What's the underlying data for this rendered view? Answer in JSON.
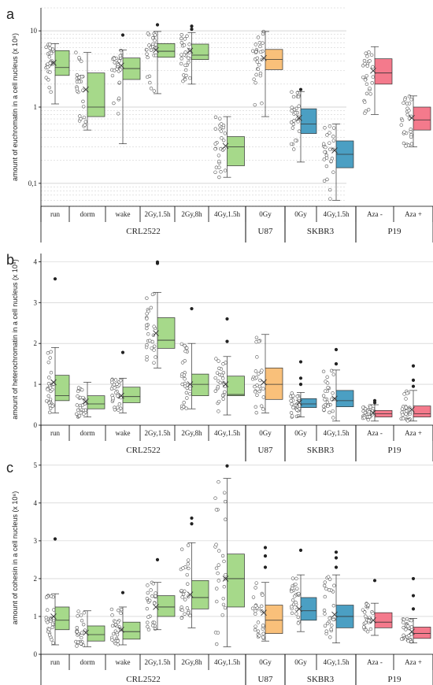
{
  "colors": {
    "CRL2522": "#a6d98a",
    "U87": "#f9c07a",
    "SKBR3": "#4b9fc3",
    "P19": "#f47a8c",
    "grid": "#c8c8c8",
    "axis": "#000000"
  },
  "chart_data": [
    {
      "type": "box",
      "panel": "a",
      "ylabel": "amount of euchromatin in a cell nucleus (x 10⁸)",
      "yscale": "log",
      "ylim": [
        0.05,
        20
      ],
      "yticks": [
        0.1,
        1,
        10
      ],
      "yticklabels": [
        "0,1",
        "1",
        "10"
      ],
      "grid": true,
      "categories": [
        "run",
        "dorm",
        "wake",
        "2Gy,1.5h",
        "2Gy,8h",
        "4Gy,1.5h",
        "0Gy",
        "0Gy",
        "4Gy,1.5h",
        "Aza -",
        "Aza +"
      ],
      "groups": [
        {
          "name": "CRL2522",
          "span": [
            0,
            5
          ]
        },
        {
          "name": "U87",
          "span": [
            6,
            6
          ]
        },
        {
          "name": "SKBR3",
          "span": [
            7,
            8
          ]
        },
        {
          "name": "P19",
          "span": [
            9,
            10
          ]
        }
      ],
      "boxes": [
        {
          "min": 1.1,
          "q1": 2.6,
          "median": 3.3,
          "q3": 5.5,
          "max": 6.8,
          "mean": 3.8,
          "outliers": []
        },
        {
          "min": 0.5,
          "q1": 0.75,
          "median": 1.0,
          "q3": 2.8,
          "max": 5.2,
          "mean": 1.7,
          "outliers": []
        },
        {
          "min": 0.33,
          "q1": 2.3,
          "median": 3.2,
          "q3": 4.4,
          "max": 5.6,
          "mean": 3.5,
          "outliers": [
            8.8
          ]
        },
        {
          "min": 1.5,
          "q1": 4.5,
          "median": 5.4,
          "q3": 6.8,
          "max": 9.8,
          "mean": 5.6,
          "outliers": [
            12
          ]
        },
        {
          "min": 2.0,
          "q1": 4.2,
          "median": 4.8,
          "q3": 6.7,
          "max": 9.5,
          "mean": 5.5,
          "outliers": [
            10.5,
            11.5
          ]
        },
        {
          "min": 0.12,
          "q1": 0.17,
          "median": 0.3,
          "q3": 0.41,
          "max": 0.75,
          "mean": 0.31,
          "outliers": []
        },
        {
          "min": 0.75,
          "q1": 3.1,
          "median": 4.2,
          "q3": 5.7,
          "max": 9.8,
          "mean": 4.4,
          "outliers": []
        },
        {
          "min": 0.19,
          "q1": 0.45,
          "median": 0.6,
          "q3": 0.95,
          "max": 1.6,
          "mean": 0.72,
          "outliers": [
            1.7
          ]
        },
        {
          "min": 0.06,
          "q1": 0.16,
          "median": 0.24,
          "q3": 0.36,
          "max": 0.6,
          "mean": 0.27,
          "outliers": []
        },
        {
          "min": 0.8,
          "q1": 2.0,
          "median": 2.8,
          "q3": 4.3,
          "max": 6.2,
          "mean": 3.0,
          "outliers": []
        },
        {
          "min": 0.3,
          "q1": 0.5,
          "median": 0.68,
          "q3": 1.0,
          "max": 1.4,
          "mean": 0.72,
          "outliers": []
        }
      ]
    },
    {
      "type": "box",
      "panel": "b",
      "ylabel": "amount of heterochromatin in a cell nucleus (x 10⁸)",
      "yscale": "linear",
      "ylim": [
        0,
        4.2
      ],
      "yticks": [
        0,
        1,
        2,
        3,
        4
      ],
      "yticklabels": [
        "0",
        "1",
        "2",
        "3",
        "4"
      ],
      "grid": true,
      "categories": [
        "run",
        "dorm",
        "wake",
        "2Gy,1.5h",
        "2Gy,8h",
        "4Gy,1.5h",
        "0Gy",
        "0Gy",
        "4Gy,1.5h",
        "Aza -",
        "Aza +"
      ],
      "groups": [
        {
          "name": "CRL2522",
          "span": [
            0,
            5
          ]
        },
        {
          "name": "U87",
          "span": [
            6,
            6
          ]
        },
        {
          "name": "SKBR3",
          "span": [
            7,
            8
          ]
        },
        {
          "name": "P19",
          "span": [
            9,
            10
          ]
        }
      ],
      "boxes": [
        {
          "min": 0.3,
          "q1": 0.6,
          "median": 0.72,
          "q3": 1.22,
          "max": 1.9,
          "mean": 1.05,
          "outliers": [
            3.58
          ]
        },
        {
          "min": 0.2,
          "q1": 0.4,
          "median": 0.52,
          "q3": 0.72,
          "max": 1.05,
          "mean": 0.58,
          "outliers": []
        },
        {
          "min": 0.3,
          "q1": 0.55,
          "median": 0.7,
          "q3": 0.93,
          "max": 1.15,
          "mean": 0.72,
          "outliers": [
            1.78
          ]
        },
        {
          "min": 1.4,
          "q1": 1.88,
          "median": 2.08,
          "q3": 2.63,
          "max": 3.25,
          "mean": 2.25,
          "outliers": [
            3.96,
            3.99
          ]
        },
        {
          "min": 0.4,
          "q1": 0.72,
          "median": 1.0,
          "q3": 1.25,
          "max": 2.0,
          "mean": 1.0,
          "outliers": [
            2.85
          ]
        },
        {
          "min": 0.25,
          "q1": 0.72,
          "median": 0.75,
          "q3": 1.2,
          "max": 1.68,
          "mean": 1.0,
          "outliers": [
            2.05,
            2.6
          ]
        },
        {
          "min": 0.3,
          "q1": 0.63,
          "median": 1.0,
          "q3": 1.4,
          "max": 2.22,
          "mean": 1.05,
          "outliers": []
        },
        {
          "min": 0.2,
          "q1": 0.43,
          "median": 0.52,
          "q3": 0.65,
          "max": 0.8,
          "mean": 0.55,
          "outliers": [
            1.0,
            1.15,
            1.55
          ]
        },
        {
          "min": 0.1,
          "q1": 0.45,
          "median": 0.6,
          "q3": 0.85,
          "max": 1.35,
          "mean": 0.65,
          "outliers": [
            1.5,
            1.85
          ]
        },
        {
          "min": 0.1,
          "q1": 0.2,
          "median": 0.28,
          "q3": 0.36,
          "max": 0.5,
          "mean": 0.3,
          "outliers": [
            0.55,
            0.6
          ]
        },
        {
          "min": 0.1,
          "q1": 0.2,
          "median": 0.28,
          "q3": 0.47,
          "max": 0.85,
          "mean": 0.38,
          "outliers": [
            0.95,
            1.1,
            1.45
          ]
        }
      ]
    },
    {
      "type": "box",
      "panel": "c",
      "ylabel": "amount of cohesin in a cell nucleus (x 10⁸)",
      "yscale": "linear",
      "ylim": [
        0,
        5.1
      ],
      "yticks": [
        0,
        1,
        2,
        3,
        4,
        5
      ],
      "yticklabels": [
        "0",
        "1",
        "2",
        "3",
        "4",
        "5"
      ],
      "grid": true,
      "categories": [
        "run",
        "dorm",
        "wake",
        "2Gy,1.5h",
        "2Gy,8h",
        "4Gy,1.5h",
        "0Gy",
        "0Gy",
        "4Gy,1.5h",
        "Aza -",
        "Aza +"
      ],
      "groups": [
        {
          "name": "CRL2522",
          "span": [
            0,
            5
          ]
        },
        {
          "name": "U87",
          "span": [
            6,
            6
          ]
        },
        {
          "name": "SKBR3",
          "span": [
            7,
            8
          ]
        },
        {
          "name": "P19",
          "span": [
            9,
            10
          ]
        }
      ],
      "boxes": [
        {
          "min": 0.25,
          "q1": 0.65,
          "median": 0.9,
          "q3": 1.25,
          "max": 1.6,
          "mean": 1.0,
          "outliers": [
            3.05
          ]
        },
        {
          "min": 0.2,
          "q1": 0.35,
          "median": 0.52,
          "q3": 0.75,
          "max": 1.15,
          "mean": 0.57,
          "outliers": []
        },
        {
          "min": 0.25,
          "q1": 0.4,
          "median": 0.6,
          "q3": 0.85,
          "max": 1.25,
          "mean": 0.65,
          "outliers": [
            1.63
          ]
        },
        {
          "min": 0.65,
          "q1": 1.0,
          "median": 1.25,
          "q3": 1.55,
          "max": 1.9,
          "mean": 1.25,
          "outliers": [
            2.5
          ]
        },
        {
          "min": 0.7,
          "q1": 1.2,
          "median": 1.5,
          "q3": 1.95,
          "max": 2.95,
          "mean": 1.58,
          "outliers": [
            3.45,
            3.6
          ]
        },
        {
          "min": 0.2,
          "q1": 1.25,
          "median": 2.0,
          "q3": 2.65,
          "max": 4.65,
          "mean": 2.0,
          "outliers": [
            4.98
          ]
        },
        {
          "min": 0.35,
          "q1": 0.55,
          "median": 0.9,
          "q3": 1.3,
          "max": 1.9,
          "mean": 1.1,
          "outliers": [
            2.3,
            2.6,
            2.82
          ]
        },
        {
          "min": 0.6,
          "q1": 0.9,
          "median": 1.15,
          "q3": 1.5,
          "max": 2.1,
          "mean": 1.2,
          "outliers": [
            2.75
          ]
        },
        {
          "min": 0.3,
          "q1": 0.7,
          "median": 1.0,
          "q3": 1.3,
          "max": 2.1,
          "mean": 1.05,
          "outliers": [
            2.3,
            2.55,
            2.7
          ]
        },
        {
          "min": 0.5,
          "q1": 0.7,
          "median": 0.85,
          "q3": 1.1,
          "max": 1.35,
          "mean": 0.9,
          "outliers": [
            1.95
          ]
        },
        {
          "min": 0.3,
          "q1": 0.42,
          "median": 0.55,
          "q3": 0.72,
          "max": 0.95,
          "mean": 0.6,
          "outliers": [
            1.2,
            1.55,
            2.0
          ]
        }
      ]
    }
  ]
}
